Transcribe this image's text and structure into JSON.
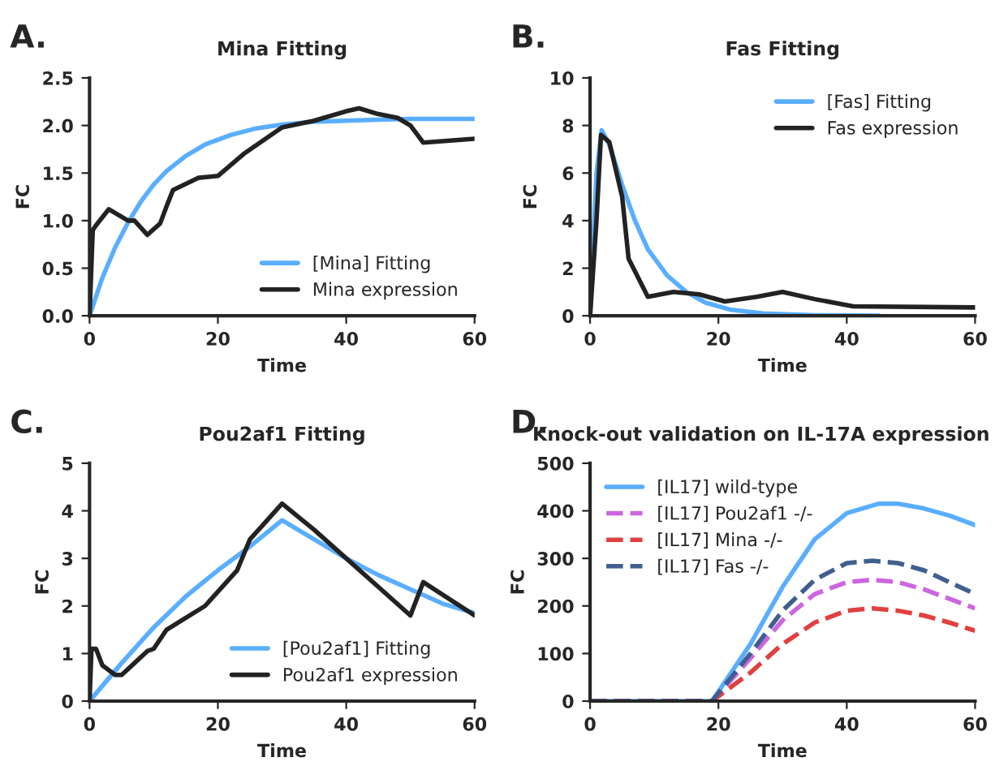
{
  "chart_data": [
    {
      "type": "line",
      "title": "Mina Fitting",
      "xlabel": "Time",
      "ylabel": "FC",
      "annotations": [
        "A."
      ],
      "xlim": [
        0,
        60
      ],
      "xticks": [
        0,
        20,
        40,
        60
      ],
      "ylim": [
        0,
        2.5
      ],
      "yticks": [
        {
          "value": 0,
          "label": "0.0"
        },
        0.5,
        {
          "value": 1,
          "label": "1.0"
        },
        1.5,
        {
          "value": 2,
          "label": "2.0"
        },
        2.5
      ],
      "grid": false,
      "legend": "bottom right",
      "marker": "none",
      "line_style": "solid",
      "series": [
        {
          "name": "[Mina] Fitting",
          "color": "#5aaeff",
          "x": [
            0,
            2,
            4,
            6,
            8,
            10,
            12,
            15,
            18,
            22,
            26,
            30,
            35,
            40,
            45,
            50,
            55,
            60
          ],
          "values": [
            0,
            0.4,
            0.72,
            0.98,
            1.2,
            1.38,
            1.52,
            1.68,
            1.8,
            1.9,
            1.97,
            2.01,
            2.04,
            2.05,
            2.06,
            2.07,
            2.07,
            2.07
          ]
        },
        {
          "name": "Mina expression",
          "color": "#222222",
          "x": [
            0,
            0.5,
            1,
            3,
            6,
            7,
            9,
            11,
            12,
            13,
            17,
            20,
            24,
            30,
            35,
            40,
            42,
            45,
            48,
            50,
            52,
            60
          ],
          "values": [
            0,
            0.9,
            0.95,
            1.12,
            1.0,
            1.0,
            0.85,
            0.97,
            1.15,
            1.32,
            1.45,
            1.47,
            1.7,
            1.98,
            2.05,
            2.15,
            2.18,
            2.12,
            2.08,
            2.0,
            1.82,
            1.86
          ]
        }
      ]
    },
    {
      "type": "line",
      "title": "Fas Fitting",
      "xlabel": "Time",
      "ylabel": "FC",
      "annotations": [
        "B."
      ],
      "xlim": [
        0,
        60
      ],
      "xticks": [
        0,
        20,
        40,
        60
      ],
      "ylim": [
        0,
        10
      ],
      "yticks": [
        0,
        2,
        4,
        6,
        8,
        10
      ],
      "grid": false,
      "legend": "top right",
      "marker": "none",
      "line_style": "solid",
      "series": [
        {
          "name": "[Fas] Fitting",
          "color": "#5aaeff",
          "x": [
            0,
            1,
            1.8,
            3,
            5,
            7,
            9,
            12,
            15,
            18,
            22,
            27,
            35,
            45
          ],
          "values": [
            0,
            6,
            7.8,
            7.2,
            5.5,
            4.0,
            2.8,
            1.7,
            1.0,
            0.55,
            0.25,
            0.1,
            0.02,
            0
          ]
        },
        {
          "name": "Fas expression",
          "color": "#222222",
          "x": [
            0,
            1,
            1.7,
            3,
            5,
            6,
            9,
            13,
            17,
            21,
            26,
            30,
            35,
            41,
            60
          ],
          "values": [
            0,
            4,
            7.6,
            7.3,
            5,
            2.4,
            0.8,
            1.0,
            0.9,
            0.6,
            0.8,
            1.0,
            0.7,
            0.4,
            0.35
          ]
        }
      ]
    },
    {
      "type": "line",
      "title": "Pou2af1 Fitting",
      "xlabel": "Time",
      "ylabel": "FC",
      "annotations": [
        "C."
      ],
      "xlim": [
        0,
        60
      ],
      "xticks": [
        0,
        20,
        40,
        60
      ],
      "ylim": [
        0,
        5
      ],
      "yticks": [
        0,
        1,
        2,
        3,
        4,
        5
      ],
      "grid": false,
      "legend": "bottom right",
      "marker": "none",
      "line_style": "solid",
      "series": [
        {
          "name": "[Pou2af1] Fitting",
          "color": "#5aaeff",
          "x": [
            0,
            5,
            10,
            15,
            20,
            25,
            30,
            35,
            40,
            45,
            50,
            55,
            60
          ],
          "values": [
            0,
            0.8,
            1.55,
            2.2,
            2.75,
            3.25,
            3.8,
            3.4,
            3.0,
            2.65,
            2.35,
            2.05,
            1.85
          ]
        },
        {
          "name": "Pou2af1 expression",
          "color": "#222222",
          "x": [
            0,
            0.3,
            1,
            2,
            4,
            5,
            7,
            9,
            10,
            12,
            15,
            18,
            20,
            23,
            25,
            27,
            30,
            35,
            40,
            45,
            50,
            52,
            60
          ],
          "values": [
            0,
            1.1,
            1.1,
            0.75,
            0.55,
            0.55,
            0.8,
            1.05,
            1.1,
            1.5,
            1.75,
            2.0,
            2.3,
            2.75,
            3.4,
            3.7,
            4.15,
            3.6,
            3.0,
            2.4,
            1.8,
            2.5,
            1.8
          ]
        }
      ]
    },
    {
      "type": "line",
      "title": "Knock-out validation on IL-17A expression",
      "xlabel": "Time",
      "ylabel": "FC",
      "annotations": [
        "D."
      ],
      "xlim": [
        0,
        60
      ],
      "xticks": [
        0,
        20,
        40,
        60
      ],
      "ylim": [
        0,
        500
      ],
      "yticks": [
        0,
        100,
        200,
        300,
        400,
        500
      ],
      "grid": false,
      "legend": "top left",
      "marker": "none",
      "line_style": "dashed",
      "series": [
        {
          "name": "[IL17] wild-type",
          "color": "#5aaeff",
          "line_style": "solid",
          "x": [
            0,
            19,
            25,
            30,
            35,
            40,
            45,
            48,
            52,
            56,
            60
          ],
          "values": [
            0,
            0,
            120,
            240,
            340,
            395,
            415,
            415,
            405,
            390,
            370
          ]
        },
        {
          "name": "[IL17] Pou2af1 -/-",
          "color": "#cc66e0",
          "x": [
            0,
            19,
            25,
            30,
            35,
            40,
            44,
            48,
            52,
            56,
            60
          ],
          "values": [
            0,
            0,
            90,
            170,
            225,
            250,
            255,
            250,
            235,
            215,
            195
          ]
        },
        {
          "name": "[IL17] Mina -/-",
          "color": "#e04040",
          "x": [
            0,
            19,
            25,
            30,
            35,
            40,
            44,
            48,
            52,
            56,
            60
          ],
          "values": [
            0,
            0,
            60,
            120,
            165,
            190,
            195,
            190,
            180,
            165,
            148
          ]
        },
        {
          "name": "[IL17] Fas -/-",
          "color": "#3f5f8f",
          "x": [
            0,
            19,
            25,
            30,
            35,
            40,
            44,
            48,
            52,
            56,
            60
          ],
          "values": [
            0,
            0,
            100,
            190,
            255,
            290,
            295,
            290,
            275,
            250,
            225
          ]
        }
      ]
    }
  ]
}
